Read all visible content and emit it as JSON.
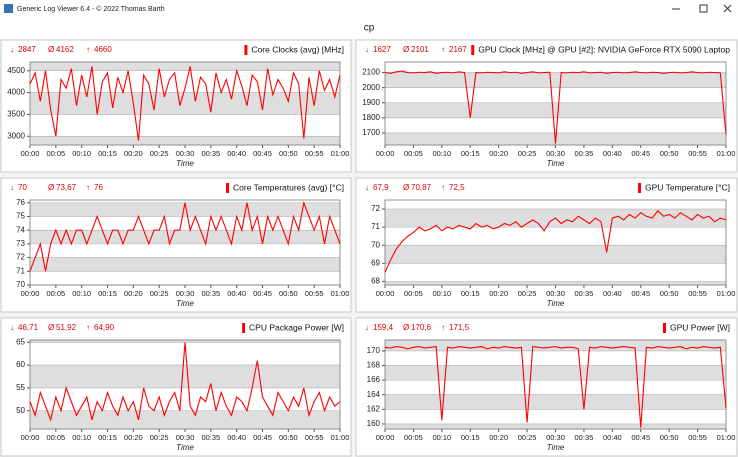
{
  "window_title": "Generic Log Viewer 6.4 - © 2022 Thomas Barth",
  "page_title": "cp",
  "chart_data": [
    {
      "type": "line",
      "title": "Core Clocks (avg) [MHz]",
      "x_label": "Time",
      "color": "#ff0000",
      "stats": [
        {
          "symbol": "↓",
          "value": 2847
        },
        {
          "symbol": "Ø",
          "value": 4162
        },
        {
          "symbol": "↑",
          "value": 4660
        }
      ],
      "xlim": [
        0,
        60
      ],
      "ylim": [
        2800,
        4700
      ],
      "yticks": [
        3000,
        3500,
        4000,
        4500
      ],
      "xticks": [
        {
          "value": 0,
          "label": "00:00"
        },
        {
          "value": 5,
          "label": "00:05"
        },
        {
          "value": 10,
          "label": "00:10"
        },
        {
          "value": 15,
          "label": "00:15"
        },
        {
          "value": 20,
          "label": "00:20"
        },
        {
          "value": 25,
          "label": "00:25"
        },
        {
          "value": 30,
          "label": "00:30"
        },
        {
          "value": 35,
          "label": "00:35"
        },
        {
          "value": 40,
          "label": "00:40"
        },
        {
          "value": 45,
          "label": "00:45"
        },
        {
          "value": 50,
          "label": "00:50"
        },
        {
          "value": 55,
          "label": "00:55"
        },
        {
          "value": 60,
          "label": "01:00"
        }
      ],
      "x": [
        0,
        1,
        2,
        3,
        4,
        5,
        6,
        7,
        8,
        9,
        10,
        11,
        12,
        13,
        14,
        15,
        16,
        17,
        18,
        19,
        20,
        21,
        22,
        23,
        24,
        25,
        26,
        27,
        28,
        29,
        30,
        31,
        32,
        33,
        34,
        35,
        36,
        37,
        38,
        39,
        40,
        41,
        42,
        43,
        44,
        45,
        46,
        47,
        48,
        49,
        50,
        51,
        52,
        53,
        54,
        55,
        56,
        57,
        58,
        59,
        60
      ],
      "values": [
        4200,
        4450,
        3800,
        4500,
        3600,
        3000,
        4300,
        4100,
        4550,
        3700,
        4400,
        3900,
        4600,
        3500,
        4250,
        4450,
        3650,
        4350,
        4000,
        4500,
        3750,
        2900,
        4400,
        4200,
        3600,
        4550,
        3900,
        4300,
        4450,
        3700,
        4100,
        4600,
        3800,
        4350,
        4200,
        3550,
        4450,
        4000,
        4300,
        3850,
        4500,
        4150,
        3700,
        4400,
        4250,
        3600,
        4550,
        3950,
        4300,
        4100,
        3800,
        4450,
        4200,
        2950,
        4350,
        3700,
        4500,
        4050,
        4300,
        3900,
        4400
      ]
    },
    {
      "type": "line",
      "title": "GPU Clock [MHz] @ GPU [#2]: NVIDIA GeForce RTX 5090 Laptop",
      "x_label": "Time",
      "color": "#ff0000",
      "stats": [
        {
          "symbol": "↓",
          "value": 1627
        },
        {
          "symbol": "Ø",
          "value": 2101
        },
        {
          "symbol": "↑",
          "value": 2167
        }
      ],
      "xlim": [
        0,
        60
      ],
      "ylim": [
        1620,
        2170
      ],
      "yticks": [
        1700,
        1800,
        1900,
        2000,
        2100
      ],
      "xticks": [
        {
          "value": 0,
          "label": "00:00"
        },
        {
          "value": 5,
          "label": "00:05"
        },
        {
          "value": 10,
          "label": "00:10"
        },
        {
          "value": 15,
          "label": "00:15"
        },
        {
          "value": 20,
          "label": "00:20"
        },
        {
          "value": 25,
          "label": "00:25"
        },
        {
          "value": 30,
          "label": "00:30"
        },
        {
          "value": 35,
          "label": "00:35"
        },
        {
          "value": 40,
          "label": "00:40"
        },
        {
          "value": 45,
          "label": "00:45"
        },
        {
          "value": 50,
          "label": "00:50"
        },
        {
          "value": 55,
          "label": "00:55"
        },
        {
          "value": 60,
          "label": "01:00"
        }
      ],
      "x": [
        0,
        1,
        2,
        3,
        4,
        5,
        6,
        7,
        8,
        9,
        10,
        11,
        12,
        13,
        14,
        15,
        16,
        17,
        18,
        19,
        20,
        21,
        22,
        23,
        24,
        25,
        26,
        27,
        28,
        29,
        30,
        31,
        32,
        33,
        34,
        35,
        36,
        37,
        38,
        39,
        40,
        41,
        42,
        43,
        44,
        45,
        46,
        47,
        48,
        49,
        50,
        51,
        52,
        53,
        54,
        55,
        56,
        57,
        58,
        59,
        60
      ],
      "values": [
        2100,
        2095,
        2105,
        2110,
        2100,
        2098,
        2102,
        2100,
        2105,
        2095,
        2100,
        2102,
        2098,
        2105,
        2100,
        1800,
        2100,
        2098,
        2102,
        2100,
        2098,
        2105,
        2100,
        2102,
        2095,
        2100,
        2105,
        2098,
        2100,
        2102,
        1630,
        2100,
        2098,
        2102,
        2100,
        2105,
        2098,
        2100,
        2102,
        2095,
        2100,
        2102,
        2098,
        2100,
        2105,
        2100,
        2098,
        2102,
        2100,
        2095,
        2100,
        2102,
        2098,
        2100,
        2105,
        2100,
        2098,
        2102,
        2100,
        2098,
        1690
      ]
    },
    {
      "type": "line",
      "title": "Core Temperatures (avg) [°C]",
      "x_label": "Time",
      "color": "#ff0000",
      "stats": [
        {
          "symbol": "↓",
          "value": 70
        },
        {
          "symbol": "Ø",
          "value": 73.67,
          "label": "73,67"
        },
        {
          "symbol": "↑",
          "value": 76
        }
      ],
      "xlim": [
        0,
        60
      ],
      "ylim": [
        70,
        76.2
      ],
      "yticks": [
        70,
        71,
        72,
        73,
        74,
        75,
        76
      ],
      "xticks": [
        {
          "value": 0,
          "label": "00:00"
        },
        {
          "value": 5,
          "label": "00:05"
        },
        {
          "value": 10,
          "label": "00:10"
        },
        {
          "value": 15,
          "label": "00:15"
        },
        {
          "value": 20,
          "label": "00:20"
        },
        {
          "value": 25,
          "label": "00:25"
        },
        {
          "value": 30,
          "label": "00:30"
        },
        {
          "value": 35,
          "label": "00:35"
        },
        {
          "value": 40,
          "label": "00:40"
        },
        {
          "value": 45,
          "label": "00:45"
        },
        {
          "value": 50,
          "label": "00:50"
        },
        {
          "value": 55,
          "label": "00:55"
        },
        {
          "value": 60,
          "label": "01:00"
        }
      ],
      "x": [
        0,
        1,
        2,
        3,
        4,
        5,
        6,
        7,
        8,
        9,
        10,
        11,
        12,
        13,
        14,
        15,
        16,
        17,
        18,
        19,
        20,
        21,
        22,
        23,
        24,
        25,
        26,
        27,
        28,
        29,
        30,
        31,
        32,
        33,
        34,
        35,
        36,
        37,
        38,
        39,
        40,
        41,
        42,
        43,
        44,
        45,
        46,
        47,
        48,
        49,
        50,
        51,
        52,
        53,
        54,
        55,
        56,
        57,
        58,
        59,
        60
      ],
      "values": [
        71,
        72,
        73,
        71,
        73,
        74,
        73,
        74,
        73,
        74,
        74,
        73,
        74,
        75,
        74,
        73,
        74,
        74,
        73,
        74,
        74,
        75,
        74,
        73,
        74,
        74,
        75,
        73,
        74,
        74,
        76,
        74,
        75,
        74,
        73,
        75,
        74,
        75,
        74,
        73,
        75,
        74,
        76,
        74,
        75,
        73,
        75,
        74,
        75,
        74,
        73,
        75,
        74,
        76,
        75,
        74,
        75,
        73,
        75,
        74,
        73
      ]
    },
    {
      "type": "line",
      "title": "GPU Temperature [°C]",
      "x_label": "Time",
      "color": "#ff0000",
      "stats": [
        {
          "symbol": "↓",
          "value": 67.9,
          "label": "67,9"
        },
        {
          "symbol": "Ø",
          "value": 70.87,
          "label": "70,87"
        },
        {
          "symbol": "↑",
          "value": 72.5,
          "label": "72,5"
        }
      ],
      "xlim": [
        0,
        60
      ],
      "ylim": [
        67.8,
        72.5
      ],
      "yticks": [
        68,
        69,
        70,
        71,
        72
      ],
      "xticks": [
        {
          "value": 0,
          "label": "00:00"
        },
        {
          "value": 5,
          "label": "00:05"
        },
        {
          "value": 10,
          "label": "00:10"
        },
        {
          "value": 15,
          "label": "00:15"
        },
        {
          "value": 20,
          "label": "00:20"
        },
        {
          "value": 25,
          "label": "00:25"
        },
        {
          "value": 30,
          "label": "00:30"
        },
        {
          "value": 35,
          "label": "00:35"
        },
        {
          "value": 40,
          "label": "00:40"
        },
        {
          "value": 45,
          "label": "00:45"
        },
        {
          "value": 50,
          "label": "00:50"
        },
        {
          "value": 55,
          "label": "00:55"
        },
        {
          "value": 60,
          "label": "01:00"
        }
      ],
      "x": [
        0,
        1,
        2,
        3,
        4,
        5,
        6,
        7,
        8,
        9,
        10,
        11,
        12,
        13,
        14,
        15,
        16,
        17,
        18,
        19,
        20,
        21,
        22,
        23,
        24,
        25,
        26,
        27,
        28,
        29,
        30,
        31,
        32,
        33,
        34,
        35,
        36,
        37,
        38,
        39,
        40,
        41,
        42,
        43,
        44,
        45,
        46,
        47,
        48,
        49,
        50,
        51,
        52,
        53,
        54,
        55,
        56,
        57,
        58,
        59,
        60
      ],
      "values": [
        68.5,
        69.2,
        69.8,
        70.2,
        70.5,
        70.7,
        71.0,
        70.8,
        70.9,
        71.1,
        70.8,
        71.0,
        70.9,
        71.1,
        71.0,
        70.9,
        71.2,
        71.0,
        71.1,
        70.9,
        71.0,
        71.2,
        71.1,
        71.3,
        71.0,
        71.2,
        71.4,
        71.2,
        70.8,
        71.3,
        71.5,
        71.2,
        71.4,
        71.3,
        71.6,
        71.4,
        71.2,
        71.5,
        71.3,
        69.6,
        71.5,
        71.6,
        71.4,
        71.7,
        71.5,
        71.8,
        71.6,
        71.5,
        71.9,
        71.6,
        71.7,
        71.5,
        71.8,
        71.6,
        71.4,
        71.7,
        71.5,
        71.6,
        71.3,
        71.5,
        71.4
      ]
    },
    {
      "type": "line",
      "title": "CPU Package Power [W]",
      "x_label": "Time",
      "color": "#ff0000",
      "stats": [
        {
          "symbol": "↓",
          "value": 46.71,
          "label": "46,71"
        },
        {
          "symbol": "Ø",
          "value": 51.92,
          "label": "51,92"
        },
        {
          "symbol": "↑",
          "value": 64.9,
          "label": "64,90"
        }
      ],
      "xlim": [
        0,
        60
      ],
      "ylim": [
        46,
        65.5
      ],
      "yticks": [
        50,
        55,
        60,
        65
      ],
      "xticks": [
        {
          "value": 0,
          "label": "00:00"
        },
        {
          "value": 5,
          "label": "00:05"
        },
        {
          "value": 10,
          "label": "00:10"
        },
        {
          "value": 15,
          "label": "00:15"
        },
        {
          "value": 20,
          "label": "00:20"
        },
        {
          "value": 25,
          "label": "00:25"
        },
        {
          "value": 30,
          "label": "00:30"
        },
        {
          "value": 35,
          "label": "00:35"
        },
        {
          "value": 40,
          "label": "00:40"
        },
        {
          "value": 45,
          "label": "00:45"
        },
        {
          "value": 50,
          "label": "00:50"
        },
        {
          "value": 55,
          "label": "00:55"
        },
        {
          "value": 60,
          "label": "01:00"
        }
      ],
      "x": [
        0,
        1,
        2,
        3,
        4,
        5,
        6,
        7,
        8,
        9,
        10,
        11,
        12,
        13,
        14,
        15,
        16,
        17,
        18,
        19,
        20,
        21,
        22,
        23,
        24,
        25,
        26,
        27,
        28,
        29,
        30,
        31,
        32,
        33,
        34,
        35,
        36,
        37,
        38,
        39,
        40,
        41,
        42,
        43,
        44,
        45,
        46,
        47,
        48,
        49,
        50,
        51,
        52,
        53,
        54,
        55,
        56,
        57,
        58,
        59,
        60
      ],
      "values": [
        52,
        49,
        54,
        51,
        48,
        53,
        50,
        55,
        52,
        49,
        51,
        53,
        48,
        52,
        50,
        54,
        51,
        49,
        53,
        50,
        52,
        48,
        55,
        51,
        50,
        53,
        49,
        52,
        54,
        50,
        65,
        51,
        49,
        53,
        52,
        56,
        50,
        54,
        51,
        49,
        53,
        52,
        50,
        55,
        61,
        53,
        51,
        49,
        54,
        52,
        50,
        53,
        51,
        55,
        49,
        52,
        54,
        50,
        53,
        51,
        52
      ]
    },
    {
      "type": "line",
      "title": "GPU Power [W]",
      "x_label": "Time",
      "color": "#ff0000",
      "stats": [
        {
          "symbol": "↓",
          "value": 159.4,
          "label": "159,4"
        },
        {
          "symbol": "Ø",
          "value": 170.6,
          "label": "170,6"
        },
        {
          "symbol": "↑",
          "value": 171.5,
          "label": "171,5"
        }
      ],
      "xlim": [
        0,
        60
      ],
      "ylim": [
        159.3,
        171.5
      ],
      "yticks": [
        160,
        162,
        164,
        166,
        168,
        170
      ],
      "xticks": [
        {
          "value": 0,
          "label": "00:00"
        },
        {
          "value": 5,
          "label": "00:05"
        },
        {
          "value": 10,
          "label": "00:10"
        },
        {
          "value": 15,
          "label": "00:15"
        },
        {
          "value": 20,
          "label": "00:20"
        },
        {
          "value": 25,
          "label": "00:25"
        },
        {
          "value": 30,
          "label": "00:30"
        },
        {
          "value": 35,
          "label": "00:35"
        },
        {
          "value": 40,
          "label": "00:40"
        },
        {
          "value": 45,
          "label": "00:45"
        },
        {
          "value": 50,
          "label": "00:50"
        },
        {
          "value": 55,
          "label": "00:55"
        },
        {
          "value": 60,
          "label": "01:00"
        }
      ],
      "x": [
        0,
        1,
        2,
        3,
        4,
        5,
        6,
        7,
        8,
        9,
        10,
        11,
        12,
        13,
        14,
        15,
        16,
        17,
        18,
        19,
        20,
        21,
        22,
        23,
        24,
        25,
        26,
        27,
        28,
        29,
        30,
        31,
        32,
        33,
        34,
        35,
        36,
        37,
        38,
        39,
        40,
        41,
        42,
        43,
        44,
        45,
        46,
        47,
        48,
        49,
        50,
        51,
        52,
        53,
        54,
        55,
        56,
        57,
        58,
        59,
        60
      ],
      "values": [
        170.5,
        170.4,
        170.6,
        170.5,
        170.3,
        170.5,
        170.6,
        170.4,
        170.5,
        170.6,
        160.5,
        170.5,
        170.4,
        170.6,
        170.5,
        170.4,
        170.5,
        170.6,
        170.3,
        170.5,
        170.4,
        170.6,
        170.5,
        170.4,
        170.5,
        160.2,
        170.6,
        170.5,
        170.4,
        170.5,
        170.6,
        170.4,
        170.5,
        170.5,
        170.3,
        162.0,
        170.5,
        170.4,
        170.6,
        170.5,
        170.4,
        170.5,
        170.6,
        170.5,
        170.4,
        159.5,
        170.5,
        170.4,
        170.6,
        170.5,
        170.4,
        170.5,
        170.6,
        170.3,
        170.5,
        170.4,
        170.6,
        170.5,
        170.4,
        170.5,
        162.2
      ]
    }
  ]
}
